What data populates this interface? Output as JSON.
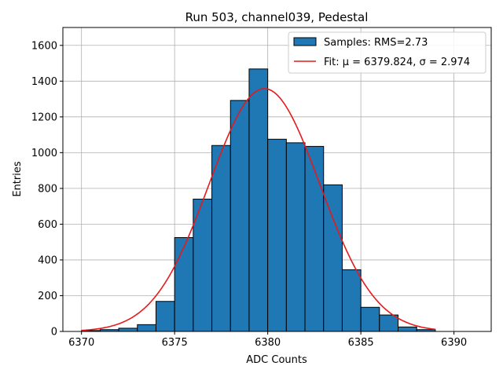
{
  "chart_data": {
    "type": "bar",
    "title": "Run 503, channel039, Pedestal",
    "xlabel": "ADC Counts",
    "ylabel": "Entries",
    "xlim": [
      6369,
      6392
    ],
    "ylim": [
      0,
      1700
    ],
    "x_ticks": [
      6370,
      6375,
      6380,
      6385,
      6390
    ],
    "y_ticks": [
      0,
      200,
      400,
      600,
      800,
      1000,
      1200,
      1400,
      1600
    ],
    "grid": true,
    "legend_position": "top-right",
    "histogram": {
      "name": "Samples: RMS=2.73",
      "color": "#1f77b4",
      "edge_color": "#000000",
      "bin_edges": [
        6370,
        6371,
        6372,
        6373,
        6374,
        6375,
        6376,
        6377,
        6378,
        6379,
        6380,
        6381,
        6382,
        6383,
        6384,
        6385,
        6386,
        6387,
        6388,
        6389
      ],
      "values": [
        5,
        10,
        18,
        38,
        168,
        525,
        740,
        1040,
        1292,
        1468,
        1075,
        1055,
        1035,
        820,
        345,
        135,
        92,
        25,
        10
      ]
    },
    "fit": {
      "name": "Fit: μ = 6379.824, σ = 2.974",
      "color": "#e41a1c",
      "mu": 6379.824,
      "sigma": 2.974,
      "amplitude": 1358,
      "x_range": [
        6370,
        6389
      ]
    }
  }
}
